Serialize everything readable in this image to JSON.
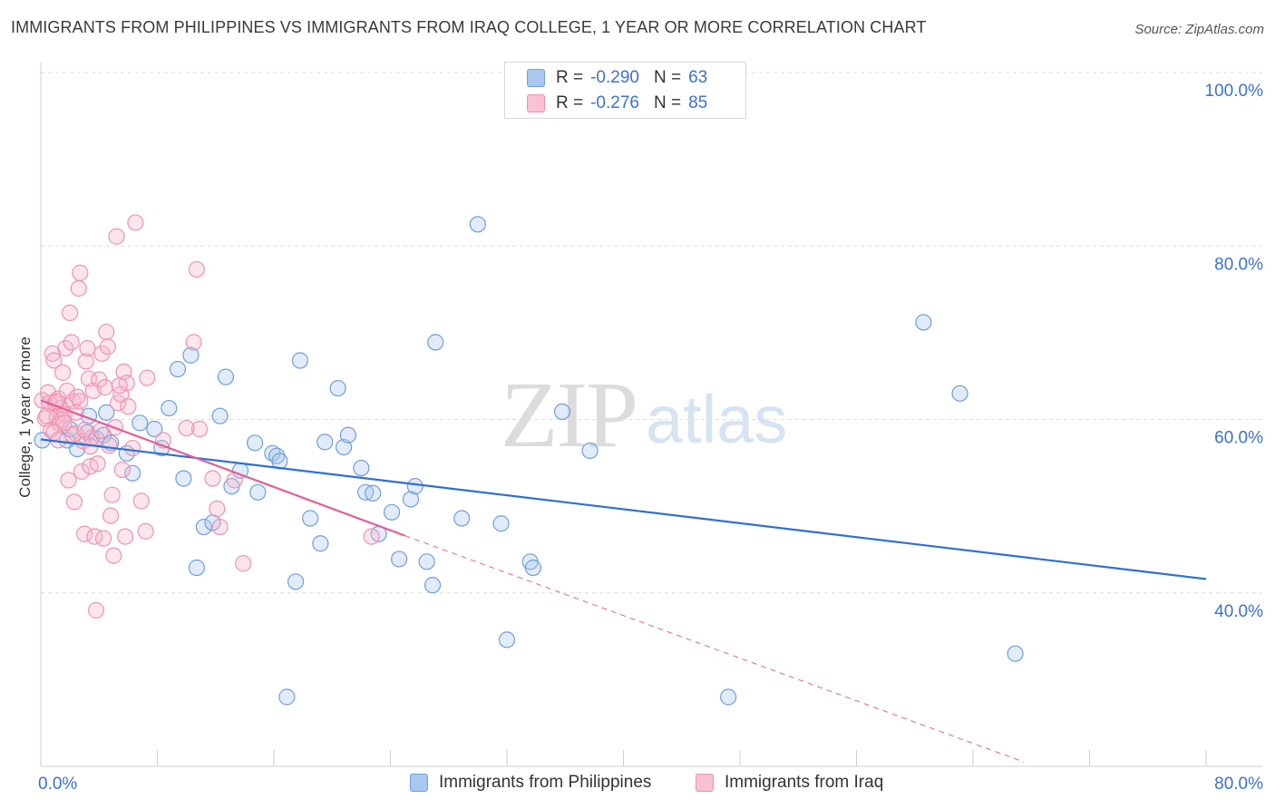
{
  "title": "IMMIGRANTS FROM PHILIPPINES VS IMMIGRANTS FROM IRAQ COLLEGE, 1 YEAR OR MORE CORRELATION CHART",
  "source": "Source: ZipAtlas.com",
  "watermark": {
    "zip": "ZIP",
    "atlas": "atlas"
  },
  "legend": {
    "rows": [
      {
        "r_label": "R =",
        "r_value": "-0.290",
        "n_label": "N =",
        "n_value": "63",
        "color": "#a9c8ef",
        "border": "#6c9ee0"
      },
      {
        "r_label": "R =",
        "r_value": "-0.276",
        "n_label": "N =",
        "n_value": "85",
        "color": "#f9c2d3",
        "border": "#ef8fae"
      }
    ]
  },
  "colors": {
    "blue_fill": "rgba(168,198,238,0.35)",
    "blue_stroke": "#6e9fdd",
    "blue_line": "#2f6fd1",
    "pink_fill": "rgba(247,180,202,0.35)",
    "pink_stroke": "#ee93b1",
    "pink_line": "#e0609a",
    "grid": "#dedede",
    "axis_text": "#3c72c8"
  },
  "chart_data": {
    "type": "scatter",
    "title": "IMMIGRANTS FROM PHILIPPINES VS IMMIGRANTS FROM IRAQ COLLEGE, 1 YEAR OR MORE CORRELATION CHART",
    "xlabel": "",
    "ylabel": "College, 1 year or more",
    "xlim": [
      0,
      80
    ],
    "ylim": [
      20,
      100
    ],
    "x_tick_labels": [
      "0.0%",
      "80.0%"
    ],
    "y_tick_labels": [
      "40.0%",
      "60.0%",
      "80.0%",
      "100.0%"
    ],
    "y_ticks": [
      40,
      60,
      80,
      100
    ],
    "series": [
      {
        "name": "Immigrants from Philippines",
        "color": "blue",
        "points": [
          [
            0.1,
            57.6
          ],
          [
            1.8,
            57.6
          ],
          [
            2.5,
            56.6
          ],
          [
            3.2,
            58.5
          ],
          [
            3.8,
            57.8
          ],
          [
            4.3,
            58.2
          ],
          [
            4.8,
            57.3
          ],
          [
            5.9,
            56.1
          ],
          [
            6.3,
            53.8
          ],
          [
            6.8,
            59.6
          ],
          [
            7.8,
            58.9
          ],
          [
            8.3,
            56.7
          ],
          [
            8.8,
            61.3
          ],
          [
            9.4,
            65.8
          ],
          [
            9.8,
            53.2
          ],
          [
            10.3,
            67.4
          ],
          [
            10.7,
            42.9
          ],
          [
            11.2,
            47.6
          ],
          [
            11.8,
            48.1
          ],
          [
            12.3,
            60.4
          ],
          [
            12.7,
            64.9
          ],
          [
            13.1,
            52.3
          ],
          [
            13.7,
            54.1
          ],
          [
            14.7,
            57.3
          ],
          [
            14.9,
            51.6
          ],
          [
            15.9,
            56.1
          ],
          [
            16.2,
            55.8
          ],
          [
            16.4,
            55.2
          ],
          [
            16.9,
            28.0
          ],
          [
            17.5,
            41.3
          ],
          [
            17.8,
            66.8
          ],
          [
            18.5,
            48.6
          ],
          [
            19.2,
            45.7
          ],
          [
            19.5,
            57.4
          ],
          [
            20.4,
            63.6
          ],
          [
            20.8,
            56.8
          ],
          [
            21.1,
            58.2
          ],
          [
            22.0,
            54.4
          ],
          [
            22.3,
            51.6
          ],
          [
            22.8,
            51.5
          ],
          [
            23.2,
            46.8
          ],
          [
            24.1,
            49.3
          ],
          [
            24.6,
            43.9
          ],
          [
            25.4,
            50.8
          ],
          [
            25.7,
            52.3
          ],
          [
            26.5,
            43.6
          ],
          [
            26.9,
            40.9
          ],
          [
            27.1,
            68.9
          ],
          [
            28.9,
            48.6
          ],
          [
            30.0,
            82.5
          ],
          [
            31.6,
            48.0
          ],
          [
            32.0,
            34.6
          ],
          [
            33.6,
            43.6
          ],
          [
            33.8,
            42.9
          ],
          [
            35.8,
            60.9
          ],
          [
            37.7,
            56.4
          ],
          [
            47.2,
            28.0
          ],
          [
            60.6,
            71.2
          ],
          [
            63.1,
            63.0
          ],
          [
            66.9,
            33.0
          ],
          [
            4.5,
            60.8
          ],
          [
            3.3,
            60.4
          ],
          [
            2.0,
            58.9
          ]
        ],
        "trend": {
          "x0": 0,
          "y0": 57.7,
          "x1": 80,
          "y1": 41.6,
          "style": "solid"
        }
      },
      {
        "name": "Immigrants from Iraq",
        "color": "pink",
        "points": [
          [
            0.1,
            62.2
          ],
          [
            0.3,
            60.1
          ],
          [
            0.5,
            63.1
          ],
          [
            0.6,
            61.9
          ],
          [
            0.7,
            58.8
          ],
          [
            0.8,
            67.6
          ],
          [
            0.9,
            66.8
          ],
          [
            1.1,
            60.3
          ],
          [
            1.2,
            62.4
          ],
          [
            1.3,
            59.5
          ],
          [
            1.4,
            61.3
          ],
          [
            1.5,
            65.4
          ],
          [
            1.6,
            60.6
          ],
          [
            1.7,
            68.2
          ],
          [
            1.8,
            63.3
          ],
          [
            1.9,
            53.0
          ],
          [
            2.0,
            72.3
          ],
          [
            2.1,
            68.9
          ],
          [
            2.2,
            62.1
          ],
          [
            2.3,
            50.5
          ],
          [
            2.4,
            58.4
          ],
          [
            2.5,
            62.6
          ],
          [
            2.6,
            75.1
          ],
          [
            2.7,
            76.9
          ],
          [
            2.8,
            54.0
          ],
          [
            2.9,
            57.5
          ],
          [
            3.0,
            46.8
          ],
          [
            3.1,
            66.7
          ],
          [
            3.2,
            68.2
          ],
          [
            3.3,
            64.7
          ],
          [
            3.4,
            54.6
          ],
          [
            3.5,
            57.9
          ],
          [
            3.6,
            63.3
          ],
          [
            3.7,
            46.5
          ],
          [
            3.8,
            38.0
          ],
          [
            3.9,
            54.9
          ],
          [
            4.0,
            64.6
          ],
          [
            4.1,
            58.7
          ],
          [
            4.2,
            67.6
          ],
          [
            4.3,
            46.3
          ],
          [
            4.5,
            70.1
          ],
          [
            4.6,
            68.4
          ],
          [
            4.7,
            57.0
          ],
          [
            4.8,
            48.9
          ],
          [
            4.9,
            51.3
          ],
          [
            5.0,
            44.3
          ],
          [
            5.1,
            59.1
          ],
          [
            5.2,
            81.1
          ],
          [
            5.3,
            61.9
          ],
          [
            5.5,
            62.9
          ],
          [
            5.6,
            54.2
          ],
          [
            5.7,
            65.5
          ],
          [
            5.8,
            46.5
          ],
          [
            5.9,
            64.2
          ],
          [
            6.0,
            61.5
          ],
          [
            6.5,
            82.7
          ],
          [
            6.9,
            50.6
          ],
          [
            7.2,
            47.1
          ],
          [
            7.3,
            64.8
          ],
          [
            10.0,
            59.0
          ],
          [
            10.5,
            68.9
          ],
          [
            10.7,
            77.3
          ],
          [
            10.9,
            58.9
          ],
          [
            11.8,
            53.2
          ],
          [
            12.1,
            49.7
          ],
          [
            12.3,
            47.6
          ],
          [
            13.3,
            53.0
          ],
          [
            13.9,
            43.4
          ],
          [
            22.7,
            46.5
          ],
          [
            0.4,
            60.4
          ],
          [
            0.9,
            58.5
          ],
          [
            1.0,
            61.9
          ],
          [
            1.1,
            62.1
          ],
          [
            1.2,
            57.6
          ],
          [
            1.5,
            60.0
          ],
          [
            1.6,
            59.6
          ],
          [
            2.2,
            58.2
          ],
          [
            2.4,
            60.8
          ],
          [
            2.7,
            62.1
          ],
          [
            3.0,
            58.8
          ],
          [
            3.4,
            56.9
          ],
          [
            4.4,
            63.7
          ],
          [
            5.4,
            63.9
          ],
          [
            6.3,
            56.7
          ],
          [
            8.4,
            57.6
          ]
        ],
        "trend": {
          "x0": 0,
          "y0": 62.2,
          "x1": 25.0,
          "y1": 46.6,
          "style": "solid",
          "extension": {
            "x1": 67.5,
            "y1": 20.5,
            "style": "dashed"
          }
        }
      }
    ]
  },
  "bottom_legend": [
    {
      "label": "Immigrants from Philippines",
      "color": "#a9c8ef",
      "border": "#6c9ee0"
    },
    {
      "label": "Immigrants from Iraq",
      "color": "#f9c2d3",
      "border": "#ef8fae"
    }
  ]
}
